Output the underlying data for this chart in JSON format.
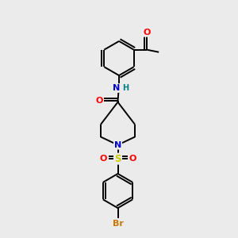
{
  "bg_color": "#ebebeb",
  "bond_color": "#000000",
  "atom_colors": {
    "O": "#ff0000",
    "N": "#0000cc",
    "S": "#cccc00",
    "Br": "#cc7700",
    "H": "#008080",
    "C": "#000000"
  },
  "figsize": [
    3.0,
    3.0
  ],
  "dpi": 100,
  "lw": 1.4,
  "ring_r": 0.72,
  "xlim": [
    0,
    10
  ],
  "ylim": [
    0,
    10
  ]
}
